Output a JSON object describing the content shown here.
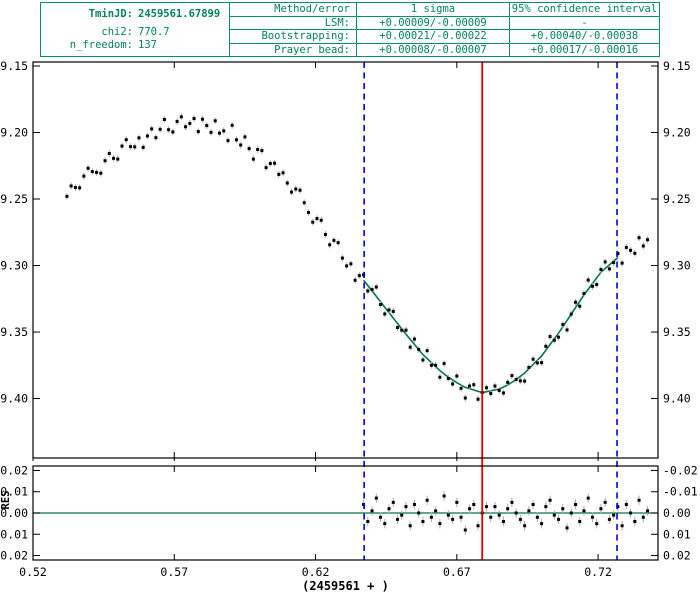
{
  "results_table": {
    "tmin_label": "TminJD:",
    "tmin_value": "2459561.67899",
    "chi2_label": "chi2:",
    "chi2_value": "770.7",
    "nfree_label": "n_freedom:",
    "nfree_value": "137",
    "col_method": "Method/error",
    "col_sigma": "1 sigma",
    "col_ci": "95% confidence interval",
    "rows": [
      {
        "method": "LSM:",
        "sigma": "+0.00009/-0.00009",
        "ci": "-"
      },
      {
        "method": "Bootstrapping:",
        "sigma": "+0.00021/-0.00022",
        "ci": "+0.00040/-0.00038"
      },
      {
        "method": "Prayer bead:",
        "sigma": "+0.00008/-0.00007",
        "ci": "+0.00017/-0.00016"
      }
    ]
  },
  "chart_data": {
    "type": "scatter",
    "xlabel": "(2459561 + )",
    "residual_ylabel": "RES",
    "x_range": [
      0.52,
      0.7412
    ],
    "y_range_main": [
      9.147,
      9.4447
    ],
    "y_range_residual": [
      -0.0221,
      0.0221
    ],
    "x_ticks": [
      0.52,
      0.57,
      0.62,
      0.67,
      0.72
    ],
    "x_tick_labels": [
      "0.52",
      "0.57",
      "0.62",
      "0.67",
      "0.72"
    ],
    "y_ticks_main": [
      9.15,
      9.2,
      9.25,
      9.3,
      9.35,
      9.4
    ],
    "y_tick_labels_main": [
      "9.15",
      "9.20",
      "9.25",
      "9.30",
      "9.35",
      "9.40"
    ],
    "y_ticks_residual": [
      -0.02,
      -0.01,
      0.0,
      0.01,
      0.02
    ],
    "y_tick_labels_residual": [
      "-0.02",
      "-0.01",
      "0.00",
      "0.01",
      "0.02"
    ],
    "tmin": 0.67899,
    "fit_range": [
      0.6372,
      0.7267
    ],
    "colors": {
      "table_green": "#008655",
      "curve_green": "#007744",
      "tmin_red": "#e60000",
      "fit_range_blue": "#0000e0",
      "error_bar_gray": "#aaaaaa",
      "point_black": "#000000"
    },
    "series": {
      "observations": [
        [
          0.532,
          9.248
        ],
        [
          0.5335,
          9.2402
        ],
        [
          0.535,
          9.2414
        ],
        [
          0.5365,
          9.2416
        ],
        [
          0.538,
          9.2328
        ],
        [
          0.5395,
          9.2269
        ],
        [
          0.541,
          9.2294
        ],
        [
          0.5425,
          9.23
        ],
        [
          0.544,
          9.2306
        ],
        [
          0.5455,
          9.2212
        ],
        [
          0.547,
          9.2158
        ],
        [
          0.5485,
          9.2194
        ],
        [
          0.55,
          9.22
        ],
        [
          0.5515,
          9.2102
        ],
        [
          0.553,
          9.2054
        ],
        [
          0.5545,
          9.2106
        ],
        [
          0.556,
          9.2108
        ],
        [
          0.5575,
          9.204
        ],
        [
          0.559,
          9.2112
        ],
        [
          0.5605,
          9.2026
        ],
        [
          0.562,
          9.1973
        ],
        [
          0.5635,
          9.2039
        ],
        [
          0.565,
          9.1976
        ],
        [
          0.5665,
          9.1902
        ],
        [
          0.568,
          9.1979
        ],
        [
          0.5695,
          9.1996
        ],
        [
          0.571,
          9.1917
        ],
        [
          0.5725,
          9.1882
        ],
        [
          0.574,
          9.1957
        ],
        [
          0.5755,
          9.1932
        ],
        [
          0.577,
          9.1895
        ],
        [
          0.5785,
          9.1993
        ],
        [
          0.58,
          9.19
        ],
        [
          0.5815,
          9.1948
        ],
        [
          0.583,
          9.1999
        ],
        [
          0.5845,
          9.1912
        ],
        [
          0.586,
          9.2005
        ],
        [
          0.5875,
          9.1988
        ],
        [
          0.589,
          9.2061
        ],
        [
          0.5905,
          9.1946
        ],
        [
          0.592,
          9.2055
        ],
        [
          0.5935,
          9.2094
        ],
        [
          0.595,
          9.2033
        ],
        [
          0.5965,
          9.2121
        ],
        [
          0.598,
          9.22
        ],
        [
          0.5995,
          9.2128
        ],
        [
          0.601,
          9.2136
        ],
        [
          0.6025,
          9.2264
        ],
        [
          0.604,
          9.2233
        ],
        [
          0.6055,
          9.2231
        ],
        [
          0.607,
          9.2315
        ],
        [
          0.6085,
          9.2303
        ],
        [
          0.61,
          9.238
        ],
        [
          0.6115,
          9.2448
        ],
        [
          0.613,
          9.2425
        ],
        [
          0.6145,
          9.2434
        ],
        [
          0.616,
          9.2528
        ],
        [
          0.6175,
          9.2601
        ],
        [
          0.619,
          9.2674
        ],
        [
          0.6205,
          9.2647
        ],
        [
          0.622,
          9.266
        ],
        [
          0.6235,
          9.2767
        ],
        [
          0.625,
          9.2844
        ],
        [
          0.6265,
          9.2811
        ],
        [
          0.628,
          9.2828
        ],
        [
          0.6295,
          9.2944
        ],
        [
          0.631,
          9.3003
        ],
        [
          0.6325,
          9.2987
        ],
        [
          0.634,
          9.3111
        ],
        [
          0.6355,
          9.3076
        ],
        [
          0.637,
          9.307
        ],
        [
          0.6385,
          9.3191
        ],
        [
          0.64,
          9.3181
        ],
        [
          0.6415,
          9.3162
        ],
        [
          0.643,
          9.3293
        ],
        [
          0.6445,
          9.3364
        ],
        [
          0.646,
          9.3334
        ],
        [
          0.6475,
          9.3345
        ],
        [
          0.649,
          9.3466
        ],
        [
          0.6505,
          9.3486
        ],
        [
          0.652,
          9.3486
        ],
        [
          0.6535,
          9.3614
        ],
        [
          0.655,
          9.3553
        ],
        [
          0.6565,
          9.3631
        ],
        [
          0.658,
          9.371
        ],
        [
          0.6595,
          9.364
        ],
        [
          0.661,
          9.375
        ],
        [
          0.6625,
          9.375
        ],
        [
          0.664,
          9.384
        ],
        [
          0.6655,
          9.3737
        ],
        [
          0.667,
          9.3849
        ],
        [
          0.6685,
          9.389
        ],
        [
          0.67,
          9.3831
        ],
        [
          0.6715,
          9.3923
        ],
        [
          0.673,
          9.3996
        ],
        [
          0.6745,
          9.3906
        ],
        [
          0.676,
          9.3896
        ],
        [
          0.6775,
          9.4005
        ],
        [
          0.679,
          9.3955
        ],
        [
          0.6805,
          9.3919
        ],
        [
          0.682,
          9.3962
        ],
        [
          0.6835,
          9.3906
        ],
        [
          0.685,
          9.3939
        ],
        [
          0.6865,
          9.3958
        ],
        [
          0.688,
          9.3878
        ],
        [
          0.6895,
          9.3828
        ],
        [
          0.691,
          9.3857
        ],
        [
          0.6925,
          9.3867
        ],
        [
          0.694,
          9.3869
        ],
        [
          0.6955,
          9.3766
        ],
        [
          0.697,
          9.3704
        ],
        [
          0.6985,
          9.3732
        ],
        [
          0.7,
          9.373
        ],
        [
          0.7015,
          9.3607
        ],
        [
          0.703,
          9.3534
        ],
        [
          0.7045,
          9.3561
        ],
        [
          0.706,
          9.3539
        ],
        [
          0.7075,
          9.3444
        ],
        [
          0.709,
          9.3484
        ],
        [
          0.7105,
          9.3365
        ],
        [
          0.712,
          9.3276
        ],
        [
          0.7135,
          9.3306
        ],
        [
          0.715,
          9.3211
        ],
        [
          0.7165,
          9.3109
        ],
        [
          0.718,
          9.3156
        ],
        [
          0.7195,
          9.3143
        ],
        [
          0.721,
          9.303
        ],
        [
          0.7225,
          9.2973
        ],
        [
          0.724,
          9.3025
        ],
        [
          0.7255,
          9.2978
        ],
        [
          0.727,
          9.291
        ],
        [
          0.7285,
          9.2982
        ],
        [
          0.73,
          9.2864
        ],
        [
          0.7315,
          9.2886
        ],
        [
          0.733,
          9.2908
        ],
        [
          0.7345,
          9.2791
        ],
        [
          0.736,
          9.2853
        ],
        [
          0.7375,
          9.2806
        ]
      ],
      "model": [
        [
          0.637,
          9.311
        ],
        [
          0.64,
          9.3191
        ],
        [
          0.643,
          9.3273
        ],
        [
          0.646,
          9.3354
        ],
        [
          0.649,
          9.3436
        ],
        [
          0.652,
          9.3516
        ],
        [
          0.655,
          9.3593
        ],
        [
          0.658,
          9.367
        ],
        [
          0.661,
          9.373
        ],
        [
          0.664,
          9.379
        ],
        [
          0.667,
          9.3839
        ],
        [
          0.67,
          9.3881
        ],
        [
          0.673,
          9.3916
        ],
        [
          0.676,
          9.3936
        ],
        [
          0.679,
          9.3955
        ],
        [
          0.682,
          9.3942
        ],
        [
          0.685,
          9.3929
        ],
        [
          0.688,
          9.3898
        ],
        [
          0.691,
          9.3857
        ],
        [
          0.694,
          9.3809
        ],
        [
          0.697,
          9.3744
        ],
        [
          0.7,
          9.368
        ],
        [
          0.703,
          9.3594
        ],
        [
          0.706,
          9.3509
        ],
        [
          0.709,
          9.3414
        ],
        [
          0.712,
          9.3316
        ],
        [
          0.715,
          9.3221
        ],
        [
          0.718,
          9.3136
        ],
        [
          0.721,
          9.305
        ],
        [
          0.724,
          9.2995
        ],
        [
          0.727,
          9.294
        ]
      ],
      "residuals": [
        [
          0.637,
          -0.004
        ],
        [
          0.6385,
          0.004
        ],
        [
          0.64,
          -0.001
        ],
        [
          0.6415,
          -0.007
        ],
        [
          0.643,
          0.002
        ],
        [
          0.6445,
          0.005
        ],
        [
          0.646,
          -0.002
        ],
        [
          0.6475,
          -0.005
        ],
        [
          0.649,
          0.003
        ],
        [
          0.6505,
          0.001
        ],
        [
          0.652,
          -0.003
        ],
        [
          0.6535,
          0.006
        ],
        [
          0.655,
          -0.004
        ],
        [
          0.6565,
          0.0
        ],
        [
          0.658,
          0.004
        ],
        [
          0.6595,
          -0.006
        ],
        [
          0.661,
          0.002
        ],
        [
          0.6625,
          -0.001
        ],
        [
          0.664,
          0.005
        ],
        [
          0.6655,
          -0.008
        ],
        [
          0.667,
          0.001
        ],
        [
          0.6685,
          0.003
        ],
        [
          0.67,
          -0.005
        ],
        [
          0.6715,
          0.002
        ],
        [
          0.673,
          0.008
        ],
        [
          0.6745,
          -0.002
        ],
        [
          0.676,
          -0.004
        ],
        [
          0.6775,
          0.006
        ],
        [
          0.679,
          0.0
        ],
        [
          0.6805,
          -0.003
        ],
        [
          0.682,
          0.002
        ],
        [
          0.6835,
          -0.003
        ],
        [
          0.685,
          0.001
        ],
        [
          0.6865,
          0.004
        ],
        [
          0.688,
          -0.002
        ],
        [
          0.6895,
          -0.005
        ],
        [
          0.691,
          0.0
        ],
        [
          0.6925,
          0.003
        ],
        [
          0.694,
          0.006
        ],
        [
          0.6955,
          -0.001
        ],
        [
          0.697,
          -0.004
        ],
        [
          0.6985,
          0.002
        ],
        [
          0.7,
          0.005
        ],
        [
          0.7015,
          -0.003
        ],
        [
          0.703,
          -0.006
        ],
        [
          0.7045,
          0.001
        ],
        [
          0.706,
          0.003
        ],
        [
          0.7075,
          -0.002
        ],
        [
          0.709,
          0.007
        ],
        [
          0.7105,
          0.0
        ],
        [
          0.712,
          -0.004
        ],
        [
          0.7135,
          0.004
        ],
        [
          0.715,
          -0.001
        ],
        [
          0.7165,
          -0.007
        ],
        [
          0.718,
          0.002
        ],
        [
          0.7195,
          0.005
        ],
        [
          0.721,
          -0.002
        ],
        [
          0.7225,
          -0.005
        ],
        [
          0.724,
          0.003
        ],
        [
          0.7255,
          0.001
        ],
        [
          0.727,
          -0.003
        ],
        [
          0.7285,
          0.006
        ],
        [
          0.73,
          -0.004
        ],
        [
          0.7315,
          0.0
        ],
        [
          0.733,
          0.004
        ],
        [
          0.7345,
          -0.006
        ],
        [
          0.736,
          0.002
        ],
        [
          0.7375,
          -0.001
        ]
      ]
    }
  }
}
